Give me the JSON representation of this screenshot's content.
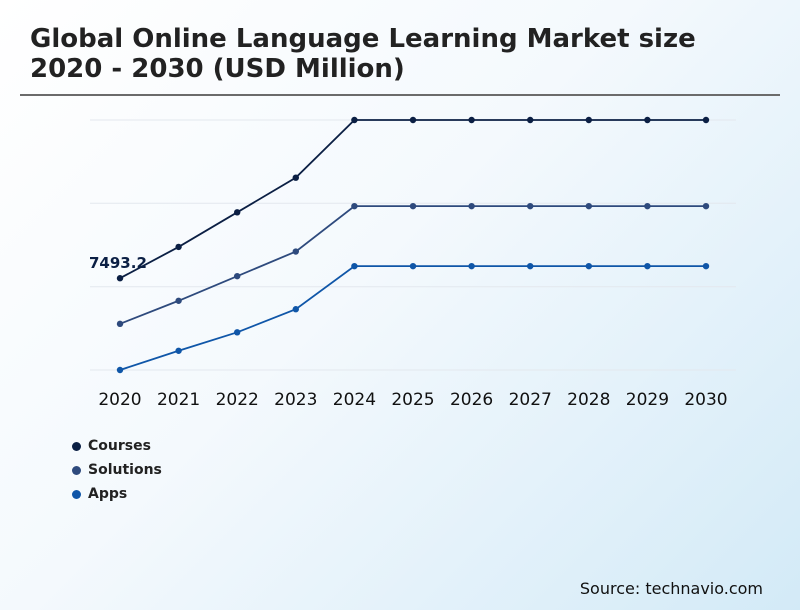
{
  "title": "Global Online Language Learning Market size 2020 - 2030 (USD Million)",
  "source": "Source: technavio.com",
  "chart_data": {
    "type": "line",
    "categories": [
      "2020",
      "2021",
      "2022",
      "2023",
      "2024",
      "2025",
      "2026",
      "2027",
      "2028",
      "2029",
      "2030"
    ],
    "series": [
      {
        "name": "Courses",
        "color": "#0b1f44",
        "values": [
          7493.2,
          7900,
          8350,
          8800,
          9550,
          9550,
          9550,
          9550,
          9550,
          9550,
          9550
        ]
      },
      {
        "name": "Solutions",
        "color": "#2e4a7d",
        "values": [
          6900,
          7200,
          7520,
          7840,
          8430,
          8430,
          8430,
          8430,
          8430,
          8430,
          8430
        ]
      },
      {
        "name": "Apps",
        "color": "#0f56a8",
        "values": [
          6300,
          6550,
          6790,
          7090,
          7650,
          7650,
          7650,
          7650,
          7650,
          7650,
          7650
        ]
      }
    ],
    "annotation": {
      "text": "7493.2",
      "series": 0,
      "index": 0
    },
    "ylim": [
      6300,
      9550
    ],
    "grid": true,
    "legend": "bottom-left",
    "xlabel": "",
    "ylabel": ""
  }
}
